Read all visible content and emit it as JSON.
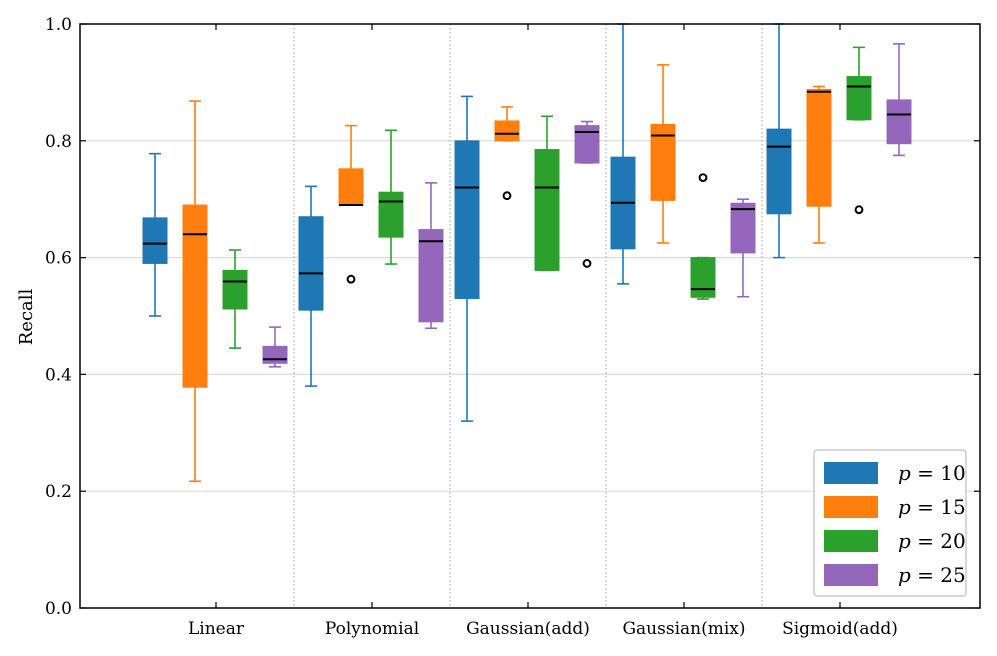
{
  "chart_data": {
    "type": "box",
    "title": "",
    "xlabel": "",
    "ylabel": "Recall",
    "ylim": [
      0.0,
      1.0
    ],
    "yticks": [
      0.0,
      0.2,
      0.4,
      0.6,
      0.8,
      1.0
    ],
    "ytick_labels": [
      "0.0",
      "0.2",
      "0.4",
      "0.6",
      "0.8",
      "1.0"
    ],
    "grid": "horizontal",
    "legend_position": "bottom-right",
    "categories": [
      "Linear",
      "Polynomial",
      "Gaussian(add)",
      "Gaussian(mix)",
      "Sigmoid(add)"
    ],
    "series": [
      {
        "name": "p = 10",
        "color": "#1f77b4",
        "boxes": [
          {
            "whislo": 0.5,
            "q1": 0.59,
            "med": 0.624,
            "q3": 0.668,
            "whishi": 0.778,
            "fliers": []
          },
          {
            "whislo": 0.38,
            "q1": 0.51,
            "med": 0.573,
            "q3": 0.67,
            "whishi": 0.722,
            "fliers": []
          },
          {
            "whislo": 0.32,
            "q1": 0.53,
            "med": 0.72,
            "q3": 0.8,
            "whishi": 0.876,
            "fliers": []
          },
          {
            "whislo": 0.555,
            "q1": 0.615,
            "med": 0.694,
            "q3": 0.772,
            "whishi": 1.0,
            "fliers": []
          },
          {
            "whislo": 0.6,
            "q1": 0.675,
            "med": 0.79,
            "q3": 0.82,
            "whishi": 1.0,
            "fliers": []
          }
        ]
      },
      {
        "name": "p = 15",
        "color": "#ff7f0e",
        "boxes": [
          {
            "whislo": 0.217,
            "q1": 0.378,
            "med": 0.64,
            "q3": 0.69,
            "whishi": 0.868,
            "fliers": []
          },
          {
            "whislo": 0.69,
            "q1": 0.69,
            "med": 0.69,
            "q3": 0.752,
            "whishi": 0.826,
            "fliers": [
              0.563
            ]
          },
          {
            "whislo": 0.8,
            "q1": 0.8,
            "med": 0.812,
            "q3": 0.834,
            "whishi": 0.858,
            "fliers": [
              0.706
            ]
          },
          {
            "whislo": 0.625,
            "q1": 0.698,
            "med": 0.809,
            "q3": 0.828,
            "whishi": 0.93,
            "fliers": []
          },
          {
            "whislo": 0.625,
            "q1": 0.688,
            "med": 0.884,
            "q3": 0.888,
            "whishi": 0.893,
            "fliers": []
          }
        ]
      },
      {
        "name": "p = 20",
        "color": "#2ca02c",
        "boxes": [
          {
            "whislo": 0.445,
            "q1": 0.512,
            "med": 0.559,
            "q3": 0.578,
            "whishi": 0.613,
            "fliers": []
          },
          {
            "whislo": 0.589,
            "q1": 0.635,
            "med": 0.696,
            "q3": 0.712,
            "whishi": 0.818,
            "fliers": []
          },
          {
            "whislo": 0.578,
            "q1": 0.578,
            "med": 0.72,
            "q3": 0.785,
            "whishi": 0.842,
            "fliers": []
          },
          {
            "whislo": 0.529,
            "q1": 0.532,
            "med": 0.546,
            "q3": 0.6,
            "whishi": 0.6,
            "fliers": [
              0.737
            ]
          },
          {
            "whislo": 0.836,
            "q1": 0.836,
            "med": 0.893,
            "q3": 0.91,
            "whishi": 0.96,
            "fliers": [
              0.682
            ]
          }
        ]
      },
      {
        "name": "p = 25",
        "color": "#9467bd",
        "boxes": [
          {
            "whislo": 0.413,
            "q1": 0.419,
            "med": 0.426,
            "q3": 0.448,
            "whishi": 0.481,
            "fliers": []
          },
          {
            "whislo": 0.479,
            "q1": 0.49,
            "med": 0.628,
            "q3": 0.648,
            "whishi": 0.728,
            "fliers": []
          },
          {
            "whislo": 0.762,
            "q1": 0.762,
            "med": 0.815,
            "q3": 0.826,
            "whishi": 0.833,
            "fliers": [
              0.59
            ]
          },
          {
            "whislo": 0.533,
            "q1": 0.608,
            "med": 0.683,
            "q3": 0.693,
            "whishi": 0.7,
            "fliers": []
          },
          {
            "whislo": 0.775,
            "q1": 0.795,
            "med": 0.845,
            "q3": 0.87,
            "whishi": 0.966,
            "fliers": []
          }
        ]
      }
    ],
    "legend": [
      {
        "label_var": "p",
        "label_eq": "= 10"
      },
      {
        "label_var": "p",
        "label_eq": "= 15"
      },
      {
        "label_var": "p",
        "label_eq": "= 20"
      },
      {
        "label_var": "p",
        "label_eq": "= 25"
      }
    ]
  }
}
